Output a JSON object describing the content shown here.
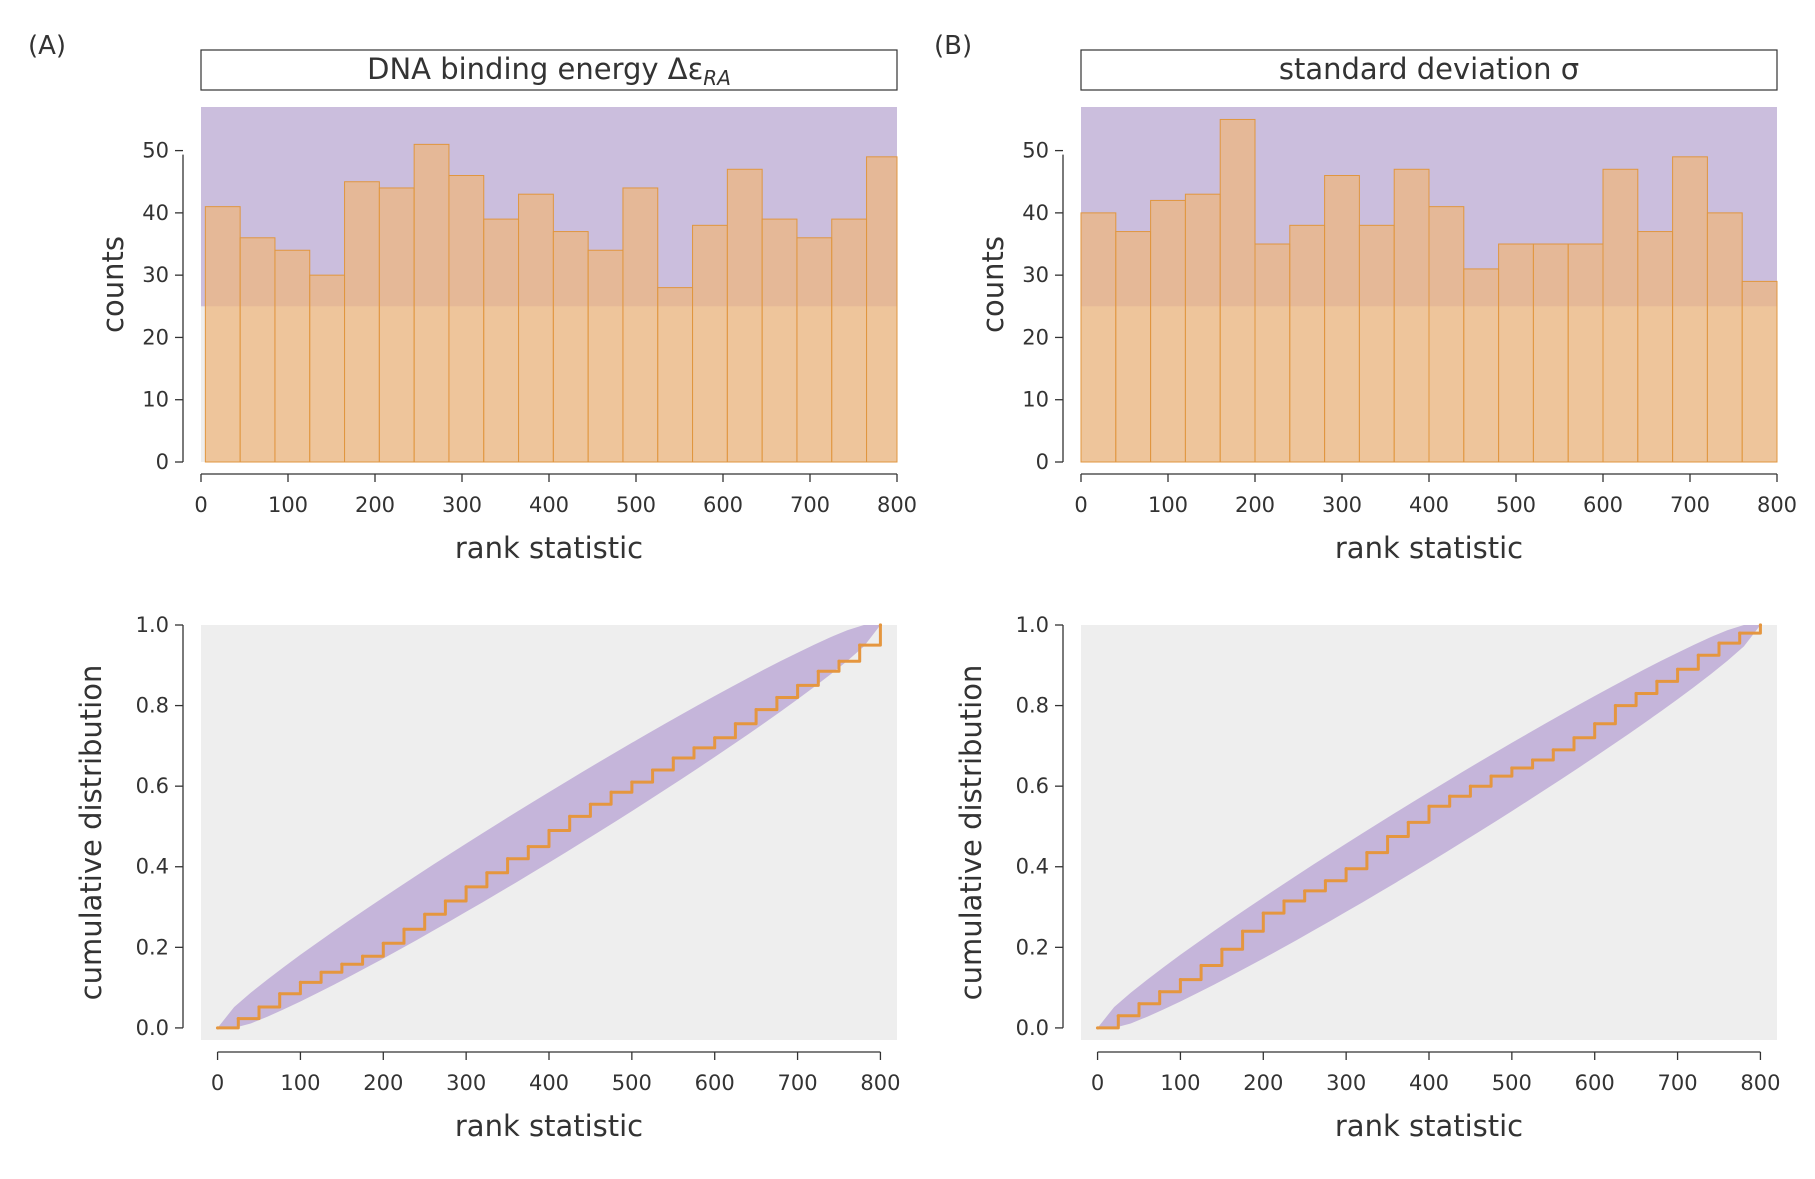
{
  "colors": {
    "panel_bg": "#eeeeee",
    "band_fill": "#9b7cc6",
    "ci_fill": "#c9b3d8",
    "bar_fill": "#eeb67c",
    "bar_stroke": "#e0963f",
    "line": "#e5963f",
    "text": "#333333"
  },
  "panels": [
    {
      "label": "(A)",
      "title": "DNA binding energy Δε",
      "title_sub": "RA"
    },
    {
      "label": "(B)",
      "title": "standard deviation σ",
      "title_sub": ""
    }
  ],
  "chart_data": [
    {
      "type": "bar",
      "panel": "(A)",
      "title": "DNA binding energy ΔεRA",
      "xlabel": "rank statistic",
      "ylabel": "counts",
      "xlim": [
        0,
        800
      ],
      "ylim": [
        0,
        57
      ],
      "xticks": [
        0,
        100,
        200,
        300,
        400,
        500,
        600,
        700,
        800
      ],
      "yticks": [
        0,
        10,
        20,
        30,
        40,
        50
      ],
      "bin_edges": [
        5,
        45,
        85,
        125,
        165,
        205,
        245,
        285,
        325,
        365,
        405,
        445,
        485,
        525,
        565,
        605,
        645,
        685,
        725,
        765,
        800
      ],
      "values": [
        41,
        36,
        34,
        30,
        45,
        44,
        51,
        46,
        39,
        43,
        37,
        34,
        44,
        28,
        38,
        47,
        39,
        36,
        39,
        49
      ],
      "band": [
        25,
        57
      ]
    },
    {
      "type": "bar",
      "panel": "(B)",
      "title": "standard deviation σ",
      "xlabel": "rank statistic",
      "ylabel": "counts",
      "xlim": [
        0,
        800
      ],
      "ylim": [
        0,
        57
      ],
      "xticks": [
        0,
        100,
        200,
        300,
        400,
        500,
        600,
        700,
        800
      ],
      "yticks": [
        0,
        10,
        20,
        30,
        40,
        50
      ],
      "bin_edges": [
        0,
        40,
        80,
        120,
        160,
        200,
        240,
        280,
        320,
        360,
        400,
        440,
        480,
        520,
        560,
        600,
        640,
        680,
        720,
        760,
        800
      ],
      "values": [
        40,
        37,
        42,
        43,
        55,
        35,
        38,
        46,
        38,
        47,
        41,
        31,
        35,
        35,
        35,
        47,
        37,
        49,
        40,
        29
      ],
      "band": [
        25,
        57
      ]
    },
    {
      "type": "line",
      "panel": "(A)",
      "xlabel": "rank statistic",
      "ylabel": "cumulative distribution",
      "xlim": [
        -20,
        820
      ],
      "ylim": [
        -0.03,
        1.0
      ],
      "xticks": [
        0,
        100,
        200,
        300,
        400,
        500,
        600,
        700,
        800
      ],
      "yticks": [
        "0.0",
        "0.2",
        "0.4",
        "0.6",
        "0.8",
        "1.0"
      ],
      "series": [
        {
          "x": [
            0,
            25,
            50,
            75,
            100,
            125,
            150,
            175,
            200,
            225,
            250,
            275,
            300,
            325,
            350,
            375,
            400,
            425,
            450,
            475,
            500,
            525,
            550,
            575,
            600,
            625,
            650,
            675,
            700,
            725,
            750,
            775,
            800
          ],
          "y": [
            0.0,
            0.023,
            0.052,
            0.085,
            0.113,
            0.138,
            0.158,
            0.178,
            0.21,
            0.245,
            0.282,
            0.315,
            0.35,
            0.385,
            0.42,
            0.45,
            0.49,
            0.525,
            0.555,
            0.585,
            0.61,
            0.64,
            0.67,
            0.695,
            0.72,
            0.755,
            0.79,
            0.82,
            0.85,
            0.885,
            0.91,
            0.95,
            1.0
          ]
        }
      ]
    },
    {
      "type": "line",
      "panel": "(B)",
      "xlabel": "rank statistic",
      "ylabel": "cumulative distribution",
      "xlim": [
        -20,
        820
      ],
      "ylim": [
        -0.03,
        1.0
      ],
      "xticks": [
        0,
        100,
        200,
        300,
        400,
        500,
        600,
        700,
        800
      ],
      "yticks": [
        "0.0",
        "0.2",
        "0.4",
        "0.6",
        "0.8",
        "1.0"
      ],
      "series": [
        {
          "x": [
            0,
            25,
            50,
            75,
            100,
            125,
            150,
            175,
            200,
            225,
            250,
            275,
            300,
            325,
            350,
            375,
            400,
            425,
            450,
            475,
            500,
            525,
            550,
            575,
            600,
            625,
            650,
            675,
            700,
            725,
            750,
            775,
            800
          ],
          "y": [
            0.0,
            0.03,
            0.06,
            0.09,
            0.12,
            0.155,
            0.195,
            0.24,
            0.285,
            0.315,
            0.34,
            0.365,
            0.395,
            0.435,
            0.475,
            0.51,
            0.55,
            0.575,
            0.6,
            0.625,
            0.645,
            0.665,
            0.69,
            0.72,
            0.755,
            0.8,
            0.83,
            0.86,
            0.89,
            0.925,
            0.955,
            0.98,
            1.0
          ]
        }
      ]
    }
  ]
}
